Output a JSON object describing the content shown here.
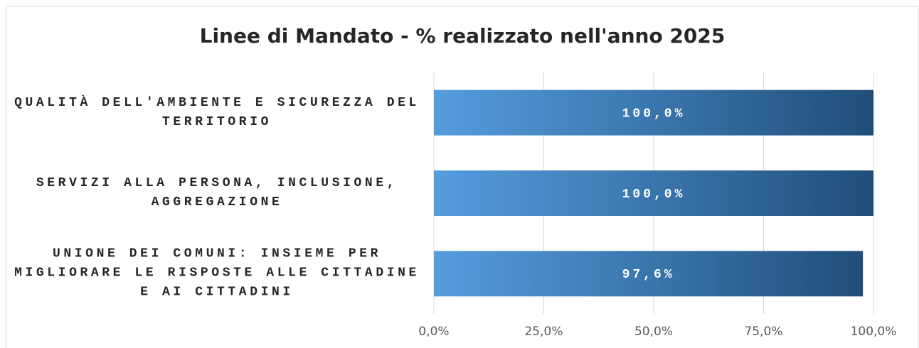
{
  "chart_data": {
    "type": "barh",
    "title": "Linee di Mandato - % realizzato nell'anno 2025",
    "categories": [
      "QUALITÀ DELL'AMBIENTE E SICUREZZA DEL TERRITORIO",
      "SERVIZI ALLA PERSONA, INCLUSIONE, AGGREGAZIONE",
      "UNIONE DEI COMUNI: INSIEME PER MIGLIORARE LE RISPOSTE ALLE CITTADINE E AI CITTADINI"
    ],
    "values": [
      100,
      100,
      97.6
    ],
    "value_labels": [
      "100,0%",
      "100,0%",
      "97,6%"
    ],
    "gradient": [
      "#559ddf",
      "#1f4e79"
    ],
    "xlim": [
      0,
      100
    ],
    "xticks": [
      {
        "value": 0,
        "label": "0,0%"
      },
      {
        "value": 25,
        "label": "25,0%"
      },
      {
        "value": 50,
        "label": "50,0%"
      },
      {
        "value": 75,
        "label": "75,0%"
      },
      {
        "value": 100,
        "label": "100,0%"
      }
    ],
    "grid": true
  }
}
